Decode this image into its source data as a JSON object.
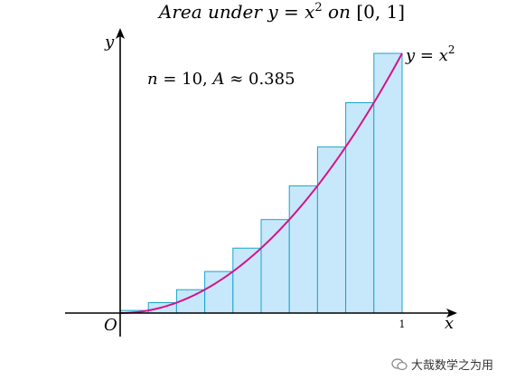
{
  "chart_data": {
    "type": "bar",
    "title": "Area under y = x² on [0,1]",
    "title_parts": {
      "a": "Area under ",
      "b": "y",
      "c": " = ",
      "d": "x",
      "e": "2",
      "f": " on ",
      "g": "[0, 1]"
    },
    "annotation": "n = 10, A ≈ 0.385",
    "annotation_parts": {
      "n": "n",
      "eq1": " = 10, ",
      "A": "A",
      "approx": " ≈ ",
      "val": "0.385"
    },
    "curve_label": {
      "y": "y",
      "eq": " = ",
      "x": "x",
      "exp": "2"
    },
    "xlabel": "x",
    "ylabel": "y",
    "origin_label": "O",
    "x_tick_labels": [
      "1"
    ],
    "n": 10,
    "xlim": [
      -0.2,
      1.12
    ],
    "ylim": [
      -0.1,
      1.1
    ],
    "rectangles": {
      "x_left": [
        0.0,
        0.1,
        0.2,
        0.3,
        0.4,
        0.5,
        0.6,
        0.7,
        0.8,
        0.9
      ],
      "heights": [
        0.01,
        0.04,
        0.09,
        0.16,
        0.25,
        0.36,
        0.49,
        0.64,
        0.81,
        1.0
      ],
      "width": 0.1
    },
    "curve": {
      "function": "x^2",
      "domain": [
        0,
        1
      ]
    },
    "colors": {
      "bar_fill": "#c6e8fa",
      "bar_stroke": "#1aa3cf",
      "curve": "#d4148c",
      "axis": "#000000"
    }
  },
  "watermark": {
    "text": "大哉数学之为用",
    "icon": "wechat-icon"
  }
}
